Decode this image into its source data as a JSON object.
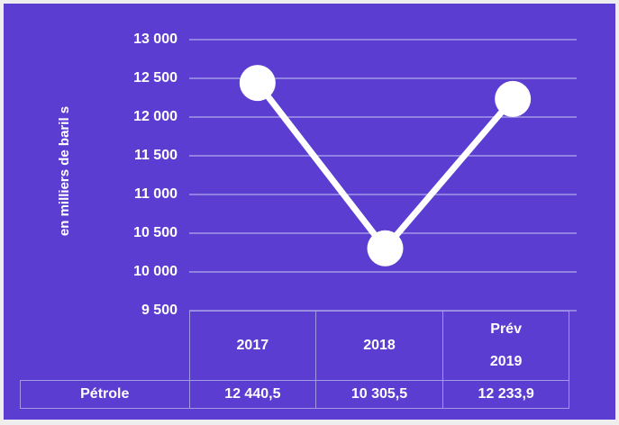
{
  "chart_data": {
    "type": "line",
    "y_label": "en milliers de baril s",
    "categories": [
      "2017",
      "2018",
      "Prév 2019"
    ],
    "series": [
      {
        "name": "Pétrole",
        "color": "#ffffff",
        "values": [
          12440.5,
          10305.5,
          12233.9
        ],
        "value_labels": [
          "12 440,5",
          "10 305,5",
          "12 233,9"
        ]
      }
    ],
    "ylim": [
      9500,
      13000
    ],
    "yticks": [
      {
        "value": 9500,
        "label": "9 500"
      },
      {
        "value": 10000,
        "label": "10 000"
      },
      {
        "value": 10500,
        "label": "10 500"
      },
      {
        "value": 11000,
        "label": "11 000"
      },
      {
        "value": 11500,
        "label": "11 500"
      },
      {
        "value": 12000,
        "label": "12 000"
      },
      {
        "value": 12500,
        "label": "12 500"
      },
      {
        "value": 13000,
        "label": "13 000"
      }
    ],
    "grid": true
  }
}
